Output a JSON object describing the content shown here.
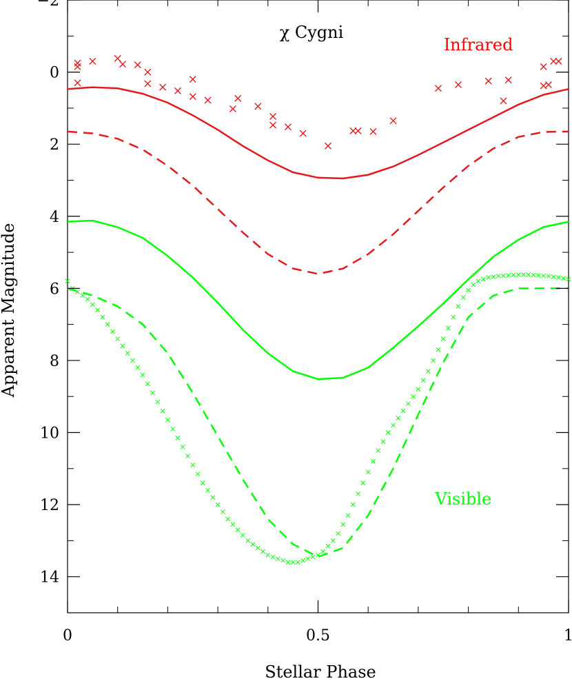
{
  "chart_data": {
    "type": "scatter",
    "title": "χ Cygni",
    "xlabel": "Stellar Phase",
    "ylabel": "Apparent Magnitude",
    "xlim": [
      0,
      1
    ],
    "ylim": [
      15,
      -2
    ],
    "y_inverted": true,
    "grid": false,
    "xticks": [
      "0",
      "0.5",
      "1"
    ],
    "yticks": [
      "−2",
      "0",
      "2",
      "4",
      "6",
      "8",
      "10",
      "12",
      "14"
    ],
    "ytick_values": [
      -2,
      0,
      2,
      4,
      6,
      8,
      10,
      12,
      14
    ],
    "xtick_values": [
      0,
      0.5,
      1
    ],
    "annotations": [
      {
        "text": "Infrared",
        "x": 0.82,
        "y": -0.6,
        "color": "#ff0000"
      },
      {
        "text": "Visible",
        "x": 0.79,
        "y": 12.0,
        "color": "#00ff00"
      }
    ],
    "series": [
      {
        "style": "solid",
        "color": "#e31a1c",
        "x": [
          0,
          0.05,
          0.1,
          0.15,
          0.2,
          0.25,
          0.3,
          0.35,
          0.4,
          0.45,
          0.5,
          0.55,
          0.6,
          0.65,
          0.7,
          0.75,
          0.8,
          0.85,
          0.9,
          0.95,
          1.0
        ],
        "y": [
          0.47,
          0.42,
          0.45,
          0.6,
          0.85,
          1.2,
          1.6,
          2.05,
          2.45,
          2.78,
          2.93,
          2.95,
          2.85,
          2.62,
          2.3,
          1.95,
          1.6,
          1.25,
          0.9,
          0.63,
          0.47
        ]
      },
      {
        "style": "dashed",
        "color": "#e31a1c",
        "x": [
          0,
          0.05,
          0.1,
          0.15,
          0.2,
          0.25,
          0.3,
          0.35,
          0.4,
          0.45,
          0.5,
          0.55,
          0.6,
          0.65,
          0.7,
          0.75,
          0.8,
          0.85,
          0.9,
          0.95,
          1.0
        ],
        "y": [
          1.65,
          1.7,
          1.85,
          2.15,
          2.6,
          3.15,
          3.8,
          4.45,
          5.05,
          5.45,
          5.6,
          5.45,
          5.05,
          4.5,
          3.85,
          3.2,
          2.6,
          2.12,
          1.8,
          1.66,
          1.65
        ]
      },
      {
        "style": "solid",
        "color": "#00ff00",
        "x": [
          0,
          0.05,
          0.1,
          0.15,
          0.2,
          0.25,
          0.3,
          0.35,
          0.4,
          0.45,
          0.5,
          0.55,
          0.6,
          0.65,
          0.7,
          0.75,
          0.8,
          0.85,
          0.9,
          0.95,
          1.0
        ],
        "y": [
          4.15,
          4.12,
          4.3,
          4.6,
          5.1,
          5.7,
          6.4,
          7.15,
          7.8,
          8.3,
          8.52,
          8.48,
          8.2,
          7.65,
          7.05,
          6.42,
          5.75,
          5.12,
          4.65,
          4.3,
          4.15
        ]
      },
      {
        "style": "dashed",
        "color": "#00ff00",
        "x": [
          0,
          0.05,
          0.1,
          0.15,
          0.2,
          0.25,
          0.3,
          0.35,
          0.4,
          0.45,
          0.5,
          0.55,
          0.6,
          0.65,
          0.7,
          0.75,
          0.8,
          0.85,
          0.9,
          0.95,
          1.0
        ],
        "y": [
          6.0,
          6.2,
          6.5,
          7.0,
          7.8,
          8.9,
          10.1,
          11.3,
          12.4,
          13.1,
          13.45,
          13.2,
          12.3,
          11.0,
          9.5,
          8.05,
          6.8,
          6.2,
          6.0,
          6.0,
          6.0
        ]
      },
      {
        "name": "Infrared",
        "style": "markers",
        "marker": "x",
        "color": "#e31a1c",
        "x": [
          0.02,
          0.02,
          0.02,
          0.05,
          0.1,
          0.11,
          0.14,
          0.16,
          0.16,
          0.19,
          0.22,
          0.25,
          0.25,
          0.28,
          0.33,
          0.34,
          0.38,
          0.41,
          0.41,
          0.44,
          0.47,
          0.52,
          0.57,
          0.58,
          0.61,
          0.65,
          0.74,
          0.78,
          0.84,
          0.87,
          0.88,
          0.95,
          0.95,
          0.96,
          0.97,
          0.98
        ],
        "y": [
          -0.25,
          -0.15,
          0.3,
          -0.3,
          -0.38,
          -0.22,
          -0.2,
          0.0,
          0.32,
          0.42,
          0.52,
          0.2,
          0.68,
          0.78,
          1.02,
          0.73,
          0.95,
          1.23,
          1.47,
          1.52,
          1.7,
          2.05,
          1.63,
          1.63,
          1.65,
          1.35,
          0.45,
          0.35,
          0.25,
          0.8,
          0.22,
          -0.15,
          0.38,
          0.35,
          -0.3,
          -0.3
        ]
      },
      {
        "name": "Visible",
        "style": "markers",
        "marker": "x",
        "color": "#00ff00",
        "x": [
          0.0,
          0.01,
          0.02,
          0.03,
          0.04,
          0.05,
          0.06,
          0.07,
          0.08,
          0.09,
          0.1,
          0.11,
          0.12,
          0.13,
          0.14,
          0.15,
          0.16,
          0.17,
          0.18,
          0.19,
          0.2,
          0.21,
          0.22,
          0.23,
          0.24,
          0.25,
          0.26,
          0.27,
          0.28,
          0.29,
          0.3,
          0.31,
          0.32,
          0.33,
          0.34,
          0.35,
          0.36,
          0.37,
          0.38,
          0.39,
          0.4,
          0.41,
          0.42,
          0.43,
          0.44,
          0.45,
          0.46,
          0.47,
          0.48,
          0.49,
          0.5,
          0.51,
          0.52,
          0.53,
          0.54,
          0.55,
          0.56,
          0.57,
          0.58,
          0.59,
          0.6,
          0.61,
          0.62,
          0.63,
          0.64,
          0.65,
          0.66,
          0.67,
          0.68,
          0.69,
          0.7,
          0.71,
          0.72,
          0.73,
          0.74,
          0.75,
          0.76,
          0.77,
          0.78,
          0.79,
          0.8,
          0.81,
          0.82,
          0.83,
          0.84,
          0.85,
          0.86,
          0.87,
          0.88,
          0.89,
          0.9,
          0.91,
          0.92,
          0.93,
          0.94,
          0.95,
          0.96,
          0.97,
          0.98,
          0.99,
          1.0
        ],
        "y": [
          5.8,
          6.0,
          6.1,
          6.2,
          6.3,
          6.45,
          6.6,
          6.8,
          7.0,
          7.2,
          7.4,
          7.6,
          7.8,
          8.0,
          8.2,
          8.4,
          8.65,
          8.9,
          9.15,
          9.4,
          9.65,
          9.9,
          10.15,
          10.4,
          10.65,
          10.9,
          11.15,
          11.4,
          11.6,
          11.8,
          12.0,
          12.2,
          12.4,
          12.55,
          12.7,
          12.85,
          13.0,
          13.1,
          13.2,
          13.3,
          13.4,
          13.45,
          13.5,
          13.55,
          13.6,
          13.6,
          13.6,
          13.55,
          13.5,
          13.45,
          13.4,
          13.3,
          13.15,
          13.0,
          12.8,
          12.55,
          12.3,
          12.0,
          11.7,
          11.4,
          11.1,
          10.8,
          10.5,
          10.25,
          10.0,
          9.8,
          9.6,
          9.4,
          9.2,
          9.0,
          8.8,
          8.55,
          8.3,
          8.0,
          7.7,
          7.4,
          7.1,
          6.8,
          6.5,
          6.25,
          6.05,
          5.9,
          5.8,
          5.75,
          5.7,
          5.68,
          5.66,
          5.65,
          5.64,
          5.63,
          5.62,
          5.62,
          5.62,
          5.63,
          5.64,
          5.65,
          5.66,
          5.68,
          5.7,
          5.72,
          5.75
        ]
      }
    ]
  }
}
